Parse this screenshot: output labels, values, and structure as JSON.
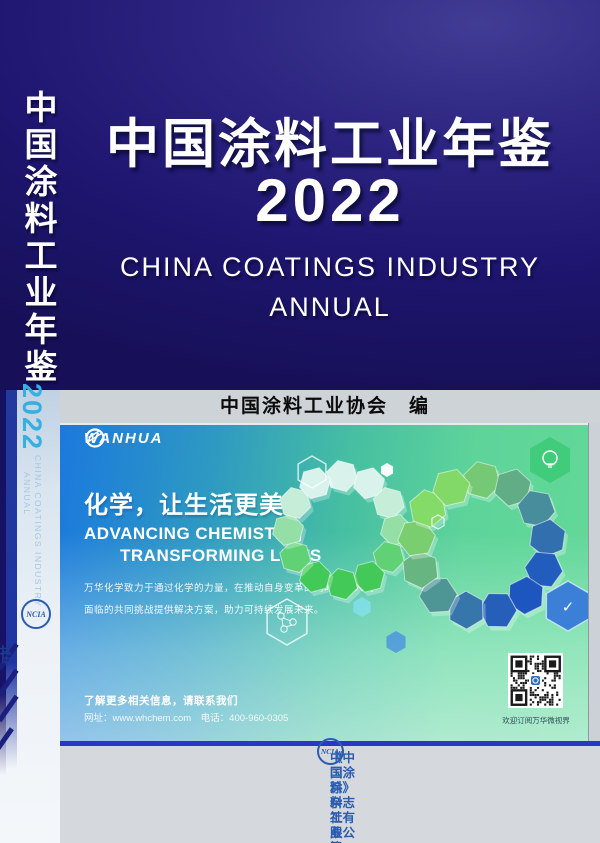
{
  "cover": {
    "title": "中国涂料工业年鉴",
    "year": "2022",
    "subtitle_line1": "CHINA COATINGS INDUSTRY",
    "subtitle_line2": "ANNUAL",
    "editor": "中国涂料工业协会　编"
  },
  "spine": {
    "title": "中国涂料工业年鉴",
    "year": "2022",
    "subtitle_line1": "CHINA COATINGS INDUSTRY",
    "subtitle_line2": "ANNUAL",
    "logo": "NCIA",
    "publisher": "《中国涂料》杂志社有限公司",
    "org": "中国涂料工业协会"
  },
  "ad": {
    "brand": "WANHUA",
    "slogan_cn": "化学，让生活更美好",
    "slogan_en_line1": "ADVANCING CHEMISTRY,",
    "slogan_en_line2": "TRANSFORMING LIVES",
    "body_line1": "万华化学致力于通过化学的力量，在推动自身变革的同时，为人类",
    "body_line2": "面临的共同挑战提供解决方案，助力可持续发展未来。",
    "contact_heading": "了解更多相关信息，请联系我们",
    "contact_details": "网址：www.whchem.com　电话：400-960-0305",
    "qr_caption": "欢迎订阅万华微视界"
  },
  "footer": {
    "logo": "NCIA",
    "org": "中 国 涂 料 工 业 协 会",
    "publisher": "《中国涂料》杂志社有限公司"
  },
  "colors": {
    "cover_navy": "#1e1670",
    "accent_cyan": "#35b0e0",
    "ad_blue": "#1b79dd",
    "ad_green": "#62d897",
    "band_gray": "#ced3d8",
    "royal_line_blue": "#2b36c8",
    "spine_text_blue": "#1d3a8f",
    "footer_blue": "#2a5cb0"
  }
}
